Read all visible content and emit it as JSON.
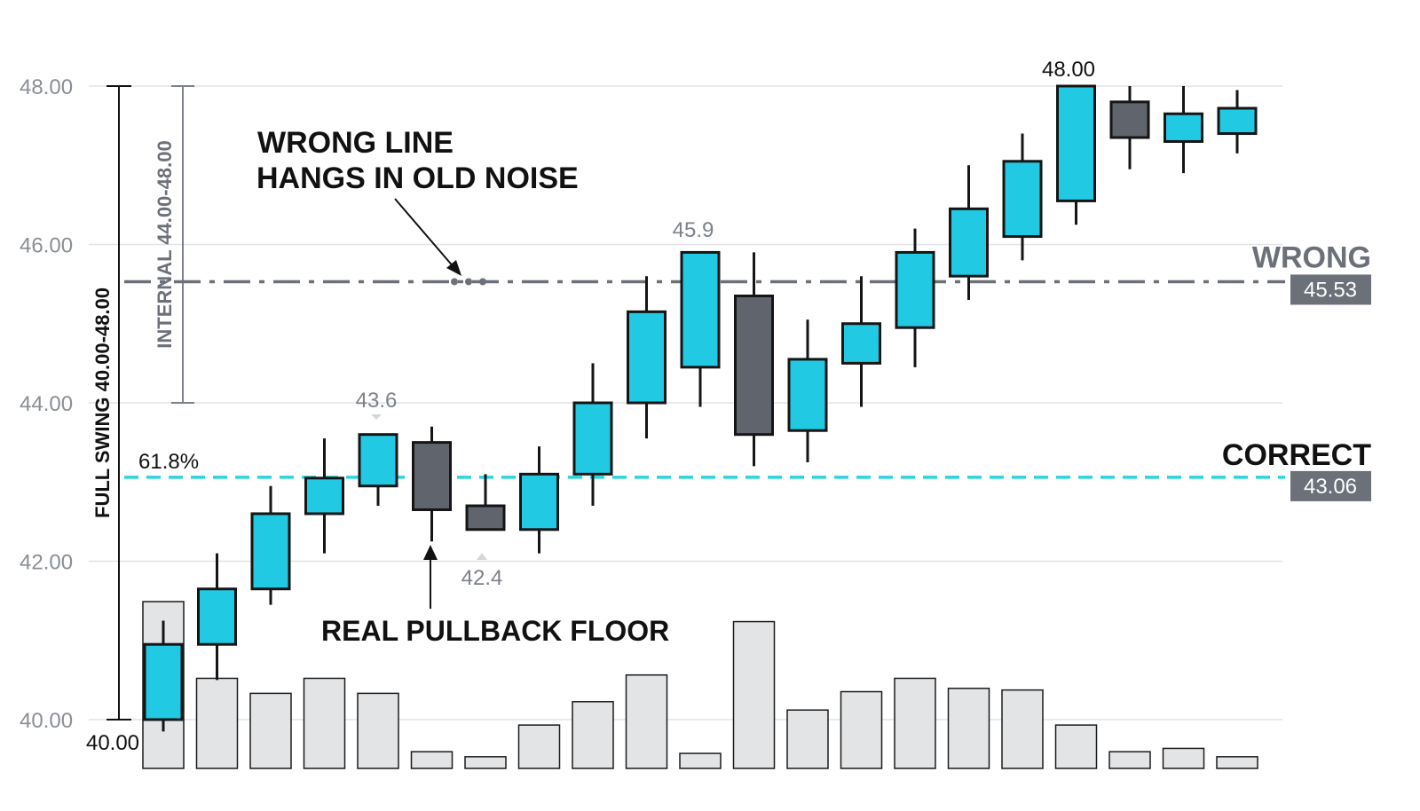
{
  "chart_data": {
    "type": "candlestick",
    "ylim": [
      40,
      48
    ],
    "y_ticks": [
      "40.00",
      "42.00",
      "44.00",
      "46.00",
      "48.00"
    ],
    "grid": true,
    "candles": [
      {
        "o": 40.0,
        "h": 41.25,
        "l": 39.85,
        "c": 40.95,
        "dir": "up"
      },
      {
        "o": 40.95,
        "h": 42.1,
        "l": 40.5,
        "c": 41.65,
        "dir": "up"
      },
      {
        "o": 41.65,
        "h": 42.95,
        "l": 41.45,
        "c": 42.6,
        "dir": "up"
      },
      {
        "o": 42.6,
        "h": 43.55,
        "l": 42.1,
        "c": 43.05,
        "dir": "up"
      },
      {
        "o": 42.95,
        "h": 43.6,
        "l": 42.7,
        "c": 43.6,
        "dir": "up"
      },
      {
        "o": 43.5,
        "h": 43.7,
        "l": 42.25,
        "c": 42.65,
        "dir": "down"
      },
      {
        "o": 42.7,
        "h": 43.1,
        "l": 42.4,
        "c": 42.4,
        "dir": "down"
      },
      {
        "o": 42.4,
        "h": 43.45,
        "l": 42.1,
        "c": 43.1,
        "dir": "up"
      },
      {
        "o": 43.1,
        "h": 44.5,
        "l": 42.7,
        "c": 44.0,
        "dir": "up"
      },
      {
        "o": 44.0,
        "h": 45.6,
        "l": 43.55,
        "c": 45.15,
        "dir": "up"
      },
      {
        "o": 44.45,
        "h": 45.9,
        "l": 43.95,
        "c": 45.9,
        "dir": "up"
      },
      {
        "o": 45.35,
        "h": 45.9,
        "l": 43.2,
        "c": 43.6,
        "dir": "down"
      },
      {
        "o": 43.65,
        "h": 45.05,
        "l": 43.25,
        "c": 44.55,
        "dir": "up"
      },
      {
        "o": 44.5,
        "h": 45.6,
        "l": 43.95,
        "c": 45.0,
        "dir": "up"
      },
      {
        "o": 44.95,
        "h": 46.2,
        "l": 44.45,
        "c": 45.9,
        "dir": "up"
      },
      {
        "o": 45.6,
        "h": 47.0,
        "l": 45.3,
        "c": 46.45,
        "dir": "up"
      },
      {
        "o": 46.1,
        "h": 47.4,
        "l": 45.8,
        "c": 47.05,
        "dir": "up"
      },
      {
        "o": 46.55,
        "h": 48.0,
        "l": 46.25,
        "c": 48.0,
        "dir": "up"
      },
      {
        "o": 47.8,
        "h": 48.0,
        "l": 46.95,
        "c": 47.35,
        "dir": "down"
      },
      {
        "o": 47.3,
        "h": 48.0,
        "l": 46.9,
        "c": 47.65,
        "dir": "up"
      },
      {
        "o": 47.4,
        "h": 47.95,
        "l": 47.15,
        "c": 47.72,
        "dir": "up"
      }
    ],
    "volume": [
      1.0,
      0.54,
      0.45,
      0.54,
      0.45,
      0.1,
      0.07,
      0.26,
      0.4,
      0.56,
      0.09,
      0.88,
      0.35,
      0.46,
      0.54,
      0.48,
      0.47,
      0.26,
      0.1,
      0.12,
      0.07
    ],
    "levels": [
      {
        "label": "WRONG",
        "value": "45.53",
        "y": 45.53,
        "style": "dash-dot",
        "color": "#6b7079"
      },
      {
        "label": "CORRECT",
        "value": "43.06",
        "y": 43.06,
        "style": "dashed",
        "color": "#2bd4e0"
      }
    ],
    "fib_label": "61.8%",
    "full_swing_label": "FULL SWING 40.00-48.00",
    "full_swing_range": [
      40,
      48
    ],
    "internal_label": "INTERNAL 44.00-48.00",
    "internal_range": [
      44,
      48
    ],
    "annotations": {
      "wrong_line_1": "WRONG LINE",
      "wrong_line_2": "HANGS IN OLD NOISE",
      "pullback": "REAL PULLBACK FLOOR"
    },
    "point_labels": [
      {
        "text": "40.00",
        "y": 40.0
      },
      {
        "text": "43.6",
        "y": 43.6
      },
      {
        "text": "42.4",
        "y": 42.4
      },
      {
        "text": "45.9",
        "y": 45.9
      },
      {
        "text": "48.00",
        "y": 48.0
      }
    ],
    "colors": {
      "up": "#22c9e3",
      "down": "#5f646d",
      "outline": "#151515",
      "volume": "#e3e4e6",
      "grid": "#e2e4e7",
      "tick": "#8a8f96"
    }
  }
}
